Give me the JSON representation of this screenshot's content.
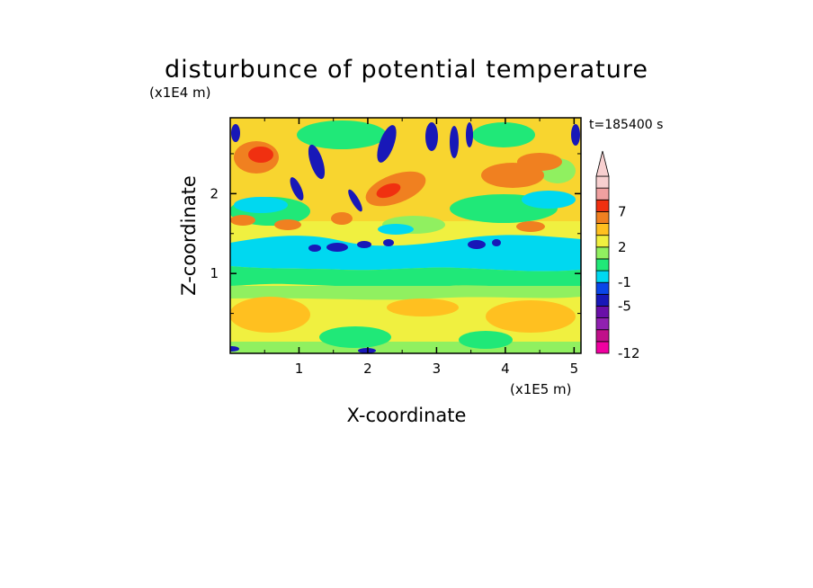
{
  "chart_data": {
    "type": "heatmap",
    "title": "disturbunce of potential temperature",
    "time_label": "t=185400 s",
    "xlabel": "X-coordinate",
    "ylabel": "Z-coordinate",
    "x_scale_label": "(x1E5 m)",
    "y_scale_label": "(x1E4 m)",
    "xlim": [
      0,
      5.1
    ],
    "ylim": [
      0,
      2.95
    ],
    "x_ticks": [
      "1",
      "2",
      "3",
      "4",
      "5"
    ],
    "y_ticks": [
      "1",
      "2"
    ],
    "colorbar": {
      "levels": [
        -12,
        -10,
        -8,
        -7,
        -5,
        -3,
        -1,
        0,
        1,
        2,
        3,
        5,
        7,
        9,
        11
      ],
      "colors": [
        "#f000a0",
        "#c0108a",
        "#9020b0",
        "#6a0fa8",
        "#1818b8",
        "#0a46e8",
        "#00d8f0",
        "#20e878",
        "#90f060",
        "#f0f040",
        "#ffc020",
        "#f08020",
        "#f03010",
        "#f0a0a0",
        "#f8d0d0"
      ],
      "tick_labels": [
        "7",
        "2",
        "-1",
        "-5",
        "-12"
      ],
      "extend": "max"
    }
  }
}
